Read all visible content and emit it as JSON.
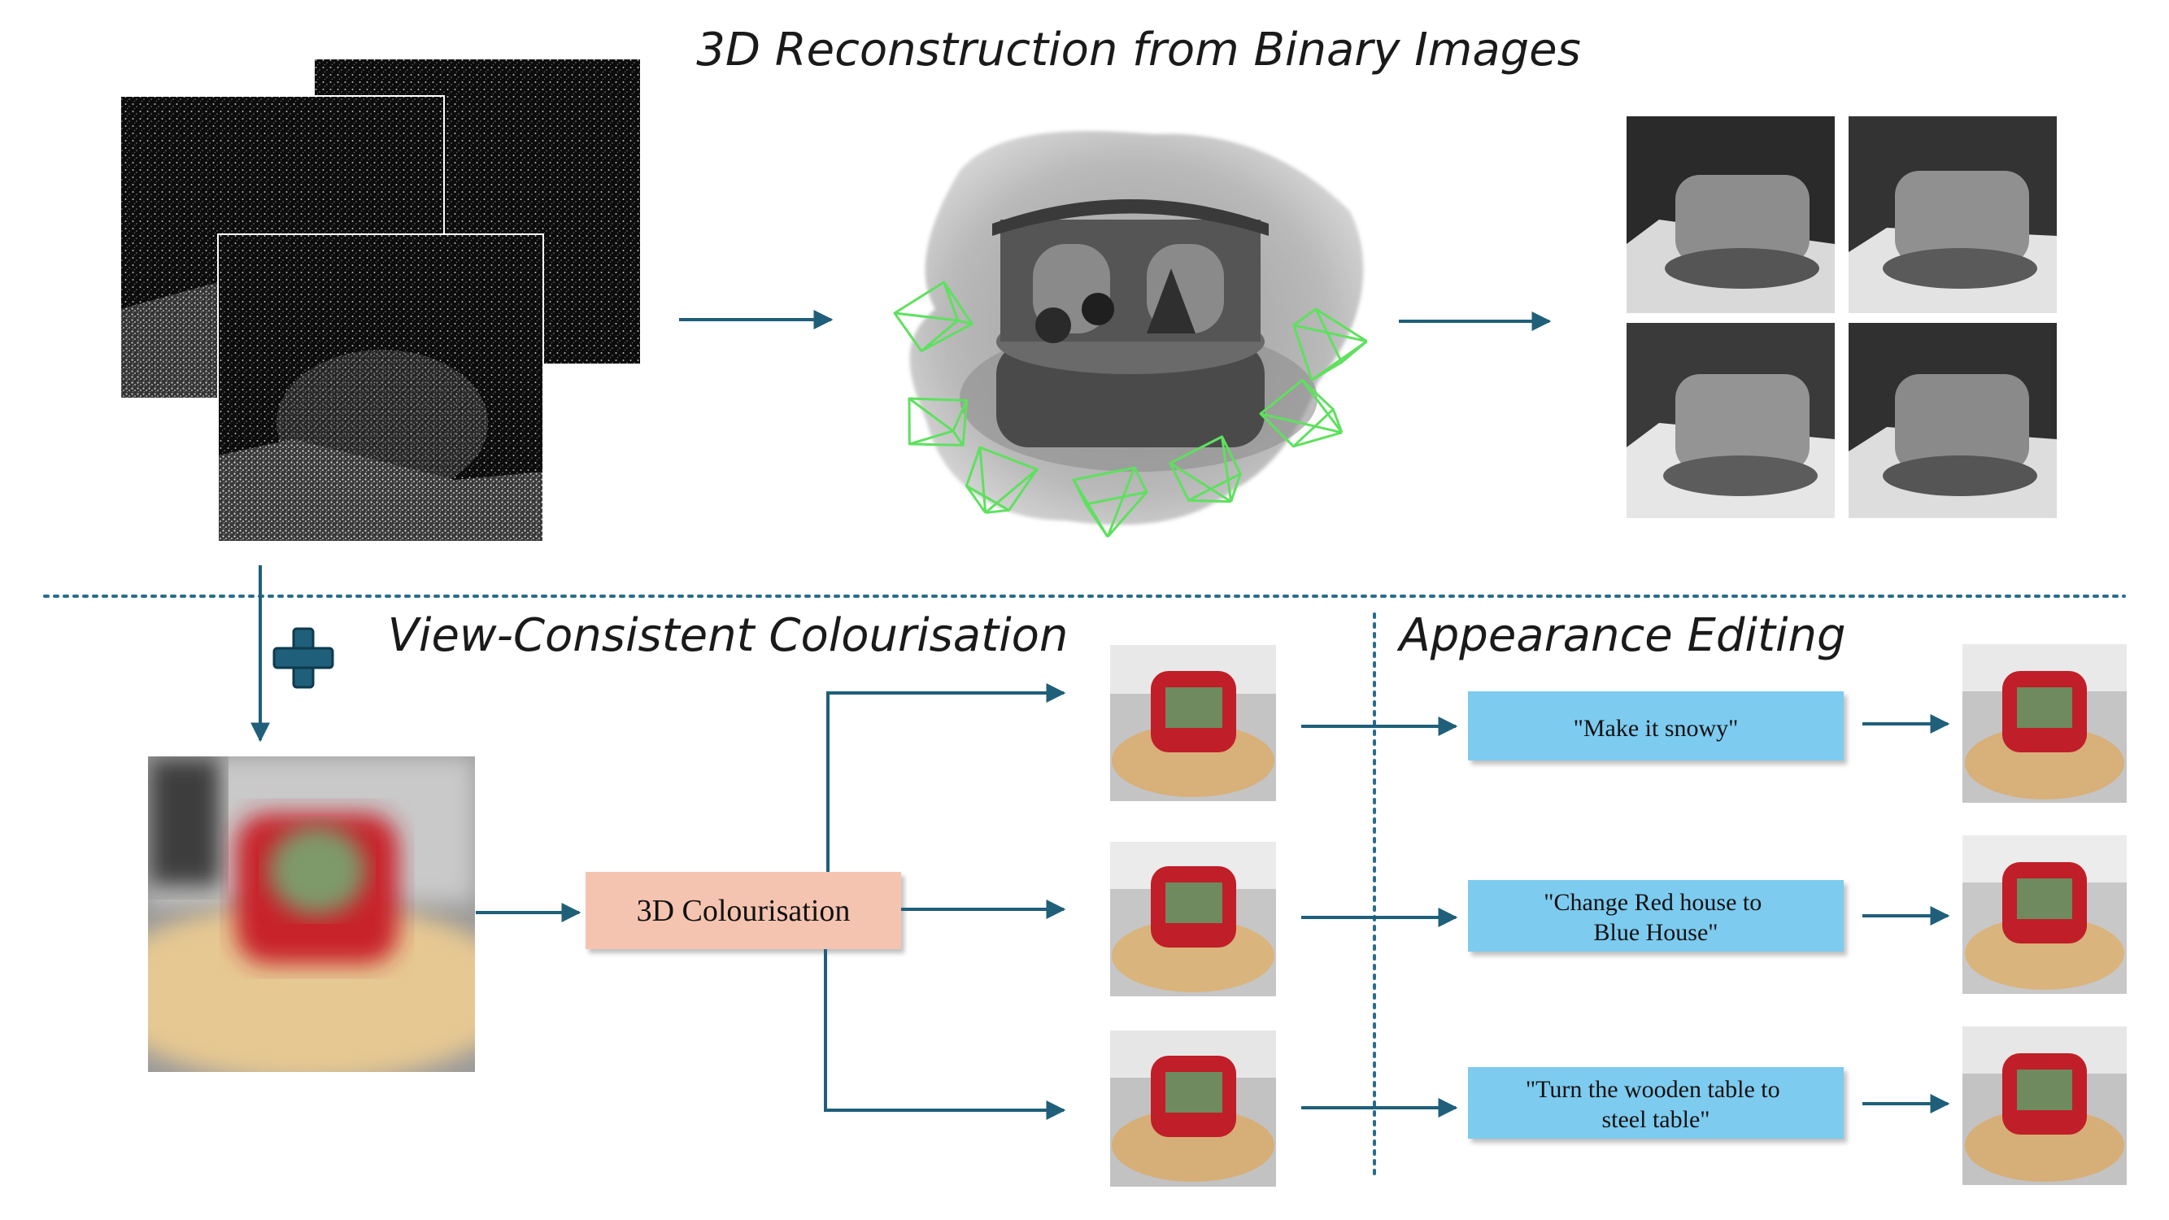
{
  "titles": {
    "reconstruction": "3D Reconstruction from Binary Images",
    "colourisation": "View-Consistent Colourisation",
    "editing": "Appearance Editing"
  },
  "process_box": {
    "label": "3D Colourisation"
  },
  "edit_prompts": [
    {
      "lines": [
        "\"Make it snowy\""
      ]
    },
    {
      "lines": [
        "\"Change Red house to",
        "Blue House\""
      ]
    },
    {
      "lines": [
        "\"Turn the wooden table to",
        "steel table\""
      ]
    }
  ],
  "colors": {
    "arrow": "#1f5f7a",
    "dotted_divider": "#2a6d8a",
    "process_box_fill": "#f5c4b0",
    "prompt_box_fill": "#7dcbef",
    "camera_wireframe": "#5fe05f",
    "plus_icon": "#1f5f7a"
  }
}
